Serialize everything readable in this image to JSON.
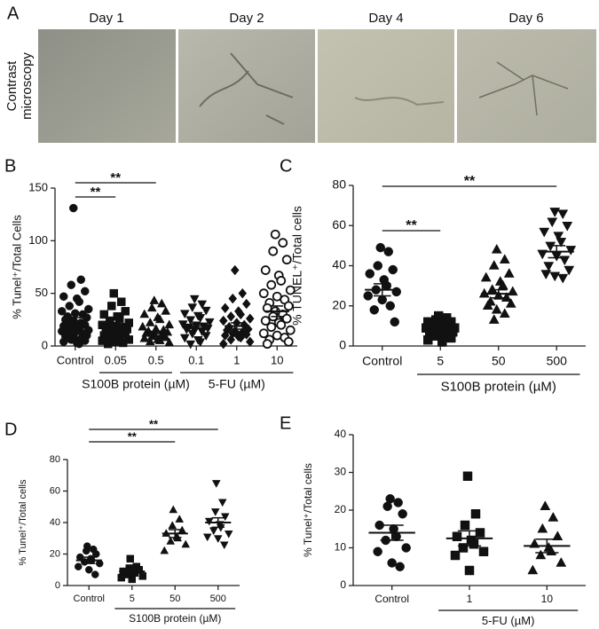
{
  "panel_a": {
    "panel": "A",
    "days": [
      "Day 1",
      "Day 2",
      "Day 4",
      "Day 6"
    ],
    "y_label": [
      "Contrast",
      "microscopy"
    ]
  },
  "chart_data": [
    {
      "type": "dotplot",
      "panel": "B",
      "y_label": "% Tunel⁺/Total Cells",
      "categories": [
        "Control",
        "0.05",
        "0.5",
        "0.1",
        "1",
        "10"
      ],
      "markers": [
        "circle",
        "square",
        "triangle",
        "inverted-triangle",
        "diamond",
        "open-circle"
      ],
      "groups": [
        [
          131,
          63,
          58,
          52,
          47,
          45,
          42,
          38,
          35,
          33,
          31,
          30,
          28,
          27,
          25,
          24,
          22,
          21,
          20,
          19,
          18,
          17,
          16,
          15,
          14,
          13,
          12,
          11,
          10,
          9,
          8,
          7,
          6,
          5,
          4,
          3,
          2
        ],
        [
          50,
          42,
          38,
          33,
          30,
          28,
          26,
          24,
          22,
          20,
          19,
          18,
          17,
          16,
          15,
          14,
          13,
          12,
          11,
          10,
          9,
          8,
          7,
          6,
          5,
          4,
          3,
          2
        ],
        [
          43,
          40,
          36,
          33,
          30,
          27,
          25,
          22,
          20,
          18,
          16,
          15,
          14,
          13,
          12,
          11,
          10,
          9,
          8,
          7,
          6,
          5,
          4,
          3
        ],
        [
          45,
          40,
          37,
          34,
          31,
          29,
          27,
          25,
          23,
          21,
          20,
          19,
          18,
          17,
          16,
          15,
          14,
          12,
          10,
          8,
          6,
          4,
          2
        ],
        [
          72,
          50,
          45,
          40,
          36,
          33,
          30,
          28,
          26,
          24,
          22,
          20,
          18,
          16,
          15,
          14,
          13,
          12,
          11,
          10,
          9,
          8,
          6,
          4,
          2
        ],
        [
          106,
          98,
          90,
          82,
          72,
          67,
          62,
          58,
          53,
          50,
          47,
          44,
          41,
          38,
          36,
          33,
          30,
          28,
          26,
          24,
          22,
          20,
          18,
          15,
          12,
          10,
          8,
          6,
          4,
          2
        ]
      ],
      "means": [
        24,
        16,
        12,
        19,
        19,
        33
      ],
      "sems": [
        3,
        2,
        2,
        2,
        3,
        5
      ],
      "ylim": [
        0,
        150
      ],
      "yticks": [
        0,
        50,
        100,
        150
      ],
      "significance": [
        {
          "label": "**",
          "between": [
            "Control",
            "0.05"
          ]
        },
        {
          "label": "**",
          "between": [
            "Control",
            "0.5"
          ]
        }
      ],
      "category_groups": [
        {
          "label": "S100B protein (µM)",
          "categories": [
            "0.05",
            "0.5"
          ]
        },
        {
          "label": "5-FU (µM)",
          "categories": [
            "0.1",
            "1",
            "10"
          ]
        }
      ]
    },
    {
      "type": "dotplot",
      "panel": "C",
      "y_label": "% TUNEL⁺/Total cells",
      "categories": [
        "Control",
        "5",
        "50",
        "500"
      ],
      "markers": [
        "circle",
        "square",
        "triangle",
        "inverted-triangle"
      ],
      "groups": [
        [
          49,
          47,
          40,
          38,
          36,
          33,
          30,
          28,
          27,
          25,
          23,
          20,
          18,
          12
        ],
        [
          15,
          14,
          13,
          12,
          12,
          11,
          10,
          10,
          9,
          9,
          8,
          8,
          7,
          7,
          6,
          6,
          5,
          5,
          4,
          3,
          2
        ],
        [
          48,
          43,
          40,
          36,
          34,
          32,
          30,
          28,
          27,
          26,
          25,
          24,
          22,
          21,
          20,
          18,
          16,
          13
        ],
        [
          67,
          66,
          62,
          60,
          57,
          55,
          52,
          50,
          48,
          46,
          45,
          43,
          40,
          38,
          36,
          35,
          34
        ]
      ],
      "means": [
        28,
        8,
        26,
        47
      ],
      "sems": [
        3,
        1,
        2,
        3
      ],
      "ylim": [
        0,
        80
      ],
      "yticks": [
        0,
        20,
        40,
        60,
        80
      ],
      "significance": [
        {
          "label": "**",
          "between": [
            "Control",
            "5"
          ]
        },
        {
          "label": "**",
          "between": [
            "Control",
            "500"
          ]
        }
      ],
      "category_groups": [
        {
          "label": "S100B protein (µM)",
          "categories": [
            "5",
            "50",
            "500"
          ]
        }
      ]
    },
    {
      "type": "dotplot",
      "panel": "D",
      "y_label": "% Tunel⁺/Total cells",
      "categories": [
        "Control",
        "5",
        "50",
        "500"
      ],
      "markers": [
        "circle",
        "square",
        "triangle",
        "inverted-triangle"
      ],
      "groups": [
        [
          25,
          23,
          22,
          20,
          18,
          17,
          16,
          15,
          14,
          12,
          10,
          7
        ],
        [
          17,
          12,
          11,
          10,
          9,
          8,
          8,
          7,
          6,
          5,
          4
        ],
        [
          48,
          42,
          38,
          35,
          33,
          31,
          30,
          28,
          26,
          22
        ],
        [
          65,
          53,
          47,
          44,
          41,
          39,
          37,
          35,
          33,
          31,
          30,
          26
        ]
      ],
      "means": [
        16,
        9,
        33,
        40
      ],
      "sems": [
        2,
        1,
        2.5,
        3
      ],
      "ylim": [
        0,
        80
      ],
      "yticks": [
        0,
        20,
        40,
        60,
        80
      ],
      "significance": [
        {
          "label": "**",
          "between": [
            "Control",
            "50"
          ]
        },
        {
          "label": "**",
          "between": [
            "Control",
            "500"
          ]
        }
      ],
      "category_groups": [
        {
          "label": "S100B protein (µM)",
          "categories": [
            "5",
            "50",
            "500"
          ]
        }
      ]
    },
    {
      "type": "dotplot",
      "panel": "E",
      "y_label": "% Tunel⁺/Total cells",
      "categories": [
        "Control",
        "1",
        "10"
      ],
      "markers": [
        "circle",
        "square",
        "triangle"
      ],
      "groups": [
        [
          23,
          22,
          21,
          19,
          16,
          15,
          13,
          12,
          10,
          9,
          6,
          5
        ],
        [
          29,
          19,
          16,
          14,
          13,
          12,
          11,
          10,
          9,
          8,
          4
        ],
        [
          21,
          18,
          15,
          13,
          11,
          10,
          9,
          8,
          6,
          4
        ]
      ],
      "means": [
        14,
        12.5,
        10.5
      ],
      "sems": [
        2,
        2,
        1.8
      ],
      "ylim": [
        0,
        40
      ],
      "yticks": [
        0,
        10,
        20,
        30,
        40
      ],
      "significance": [],
      "category_groups": [
        {
          "label": "5-FU (µM)",
          "categories": [
            "1",
            "10"
          ]
        }
      ]
    }
  ]
}
